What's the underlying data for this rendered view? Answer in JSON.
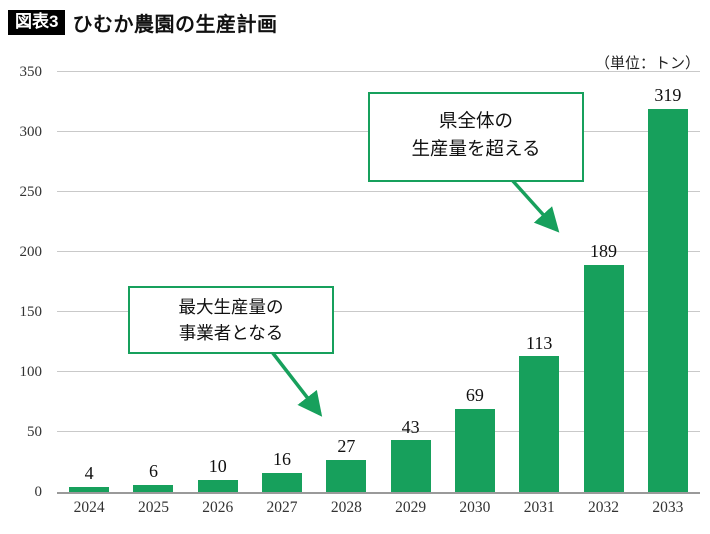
{
  "header": {
    "badge": "図表3",
    "title": "ひむか農園の生産計画"
  },
  "unit_label": "（単位：トン）",
  "chart_data": {
    "type": "bar",
    "title": "ひむか農園の生産計画",
    "categories": [
      "2024",
      "2025",
      "2026",
      "2027",
      "2028",
      "2029",
      "2030",
      "2031",
      "2032",
      "2033"
    ],
    "values": [
      4,
      6,
      10,
      16,
      27,
      43,
      69,
      113,
      189,
      319
    ],
    "xlabel": "",
    "ylabel": "",
    "unit": "トン",
    "ylim": [
      0,
      350
    ],
    "yticks": [
      0,
      50,
      100,
      150,
      200,
      250,
      300,
      350
    ],
    "grid": true,
    "legend": false,
    "data_labels": true,
    "bar_color": "#17A05C"
  },
  "annotations": [
    {
      "lines": [
        "最大生産量の",
        "事業者となる"
      ],
      "target_category": "2028",
      "target_value": 27
    },
    {
      "lines": [
        "県全体の",
        "生産量を超える"
      ],
      "target_category": "2032",
      "target_value": 189
    }
  ],
  "colors": {
    "bar": "#17A05C",
    "annotation_border": "#17A05C",
    "arrow": "#17A05C",
    "gridline": "#C9C9C9",
    "axis_line": "#9A9A9A",
    "badge_bg": "#000000",
    "badge_text": "#FFFFFF"
  }
}
